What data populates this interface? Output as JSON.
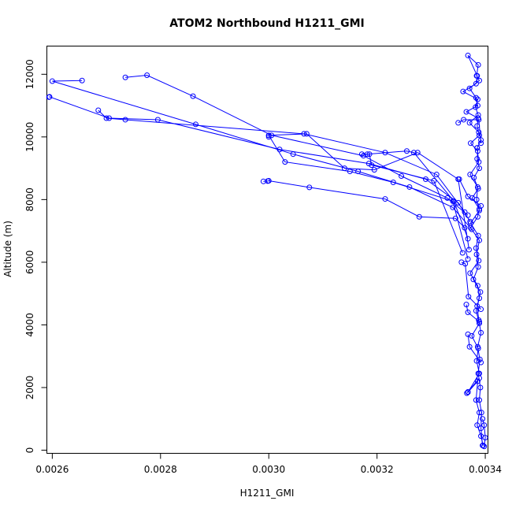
{
  "chart_data": {
    "type": "line",
    "title": "ATOM2 Northbound H1211_GMI",
    "xlabel": "H1211_GMI",
    "ylabel": "Altitude (m)",
    "xlim": [
      0.00259,
      0.003405
    ],
    "ylim": [
      -100,
      12900
    ],
    "x_ticks": [
      0.0026,
      0.0028,
      0.003,
      0.0032,
      0.0034
    ],
    "x_tick_labels": [
      "0.0026",
      "0.0028",
      "0.0030",
      "0.0032",
      "0.0034"
    ],
    "y_ticks": [
      0,
      2000,
      4000,
      6000,
      8000,
      10000,
      12000
    ],
    "y_tick_labels": [
      "0",
      "2000",
      "4000",
      "6000",
      "8000",
      "10000",
      "12000"
    ],
    "grid": false,
    "legend": "none",
    "series_color": "#0000ff",
    "markers": "open-circle",
    "series": [
      {
        "x": [
          0.003395,
          0.003392,
          0.003393,
          0.003389,
          0.003391,
          0.003387,
          0.00339,
          0.003386,
          0.003392,
          0.003388,
          0.003385,
          0.003391,
          0.003378,
          0.003387,
          0.003384,
          0.003389,
          0.003373,
          0.003386,
          0.003389,
          0.003376,
          0.003387,
          0.003379,
          0.003389,
          0.003385,
          0.003386,
          0.003373,
          0.003389,
          0.003385,
          0.003387,
          0.003365,
          0.003386,
          0.003383,
          0.003371,
          0.003389,
          0.003384,
          0.003387,
          0.003368,
          0.003385,
          0.003383,
          0.003359,
          0.003386,
          0.003382,
          0.003387,
          0.003371,
          0.003388,
          0.003392,
          0.003385
        ],
        "y": [
          150,
          700,
          1200,
          1600,
          2000,
          2450,
          2900,
          3300,
          3750,
          4150,
          4600,
          5050,
          5450,
          5850,
          6250,
          6700,
          7100,
          7450,
          7700,
          8050,
          8350,
          8700,
          9000,
          9300,
          9550,
          9800,
          10050,
          10350,
          10600,
          10800,
          11000,
          11250,
          11550,
          11800,
          11950,
          12300,
          12600,
          11950,
          11700,
          11450,
          11200,
          10950,
          10700,
          10450,
          10150,
          9900,
          9650
        ]
      },
      {
        "x": [
          0.003385,
          0.003388,
          0.003372,
          0.003386,
          0.003384,
          0.003389,
          0.003373,
          0.003387,
          0.003383,
          0.003388,
          0.003372,
          0.003386,
          0.003389,
          0.003383,
          0.003389,
          0.003375,
          0.003387,
          0.003384,
          0.003389,
          0.003368,
          0.003386,
          0.003383,
          0.003389,
          0.003385,
          0.003392,
          0.003396
        ],
        "y": [
          9650,
          9200,
          8800,
          8400,
          8000,
          7650,
          7250,
          6850,
          6450,
          6050,
          5650,
          5250,
          4850,
          4450,
          4050,
          3650,
          3250,
          2850,
          2450,
          1850,
          2200,
          1600,
          1200,
          800,
          450,
          150
        ]
      },
      {
        "x": [
          0.002735,
          0.002775,
          0.00286,
          0.003005,
          0.003175,
          0.003245,
          0.00333,
          0.003368
        ],
        "y": [
          11900,
          11970,
          11300,
          10050,
          9400,
          8750,
          8050,
          7500
        ]
      },
      {
        "x": [
          0.002655,
          0.0026,
          0.002865,
          0.003045,
          0.003165,
          0.00326,
          0.00334,
          0.003375
        ],
        "y": [
          11800,
          11780,
          10400,
          9450,
          8900,
          8400,
          7750,
          7050
        ]
      },
      {
        "x": [
          0.002594,
          0.002595,
          0.002705,
          0.002795,
          0.00302,
          0.003185,
          0.00329,
          0.00335,
          0.003372
        ],
        "y": [
          11270,
          11280,
          10600,
          10550,
          9600,
          9150,
          8650,
          7900,
          7300
        ]
      },
      {
        "x": [
          0.002685,
          0.0027,
          0.002735,
          0.003065,
          0.003215,
          0.00331,
          0.003362
        ],
        "y": [
          10850,
          10600,
          10550,
          10100,
          9500,
          8800,
          7600
        ]
      },
      {
        "x": [
          0.003,
          0.00307,
          0.00314,
          0.003195,
          0.003275,
          0.00335,
          0.00337
        ],
        "y": [
          10050,
          10100,
          9000,
          8950,
          9500,
          8650,
          6400
        ]
      },
      {
        "x": [
          0.003,
          0.003,
          0.00303,
          0.00315,
          0.00323,
          0.00334,
          0.003368
        ],
        "y": [
          10000,
          10050,
          9200,
          8900,
          8550,
          7950,
          6100
        ]
      },
      {
        "x": [
          0.003182,
          0.003255,
          0.003268,
          0.003342,
          0.003368
        ],
        "y": [
          9450,
          9550,
          9500,
          7950,
          6750
        ]
      },
      {
        "x": [
          0.003172,
          0.003186,
          0.00319,
          0.003305,
          0.003358
        ],
        "y": [
          9450,
          9450,
          9100,
          8600,
          6300
        ]
      },
      {
        "x": [
          0.00299,
          0.002998,
          0.003,
          0.003075,
          0.003215,
          0.003278,
          0.003345,
          0.003362
        ],
        "y": [
          8580,
          8590,
          8600,
          8390,
          8020,
          7450,
          7400,
          7100
        ]
      },
      {
        "x": [
          0.00335,
          0.00336,
          0.003388,
          0.003392
        ],
        "y": [
          10450,
          10550,
          10550,
          9800
        ]
      },
      {
        "x": [
          0.003352,
          0.003368,
          0.003392
        ],
        "y": [
          8650,
          8100,
          7800
        ]
      },
      {
        "x": [
          0.003356,
          0.003363,
          0.003369,
          0.003392
        ],
        "y": [
          6000,
          5950,
          4900,
          4500
        ]
      },
      {
        "x": [
          0.003365,
          0.003368,
          0.003389
        ],
        "y": [
          4650,
          4400,
          4100
        ]
      },
      {
        "x": [
          0.003368,
          0.003371,
          0.003392
        ],
        "y": [
          3700,
          3300,
          2800
        ]
      },
      {
        "x": [
          0.003366,
          0.003368,
          0.003389
        ],
        "y": [
          1820,
          1860,
          2300
        ]
      },
      {
        "x": [
          0.003395,
          0.003398,
          0.0034,
          0.003398
        ],
        "y": [
          1000,
          800,
          400,
          120
        ]
      }
    ]
  }
}
